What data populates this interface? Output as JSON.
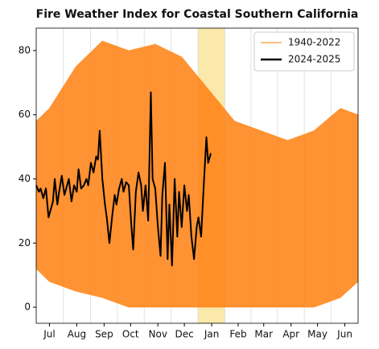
{
  "chart_data": {
    "type": "line",
    "title": "Fire Weather Index for Coastal Southern California",
    "xlim": [
      0,
      365
    ],
    "ylim": [
      -5,
      87
    ],
    "yticks": [
      0,
      20,
      40,
      60,
      80
    ],
    "xticks": [
      {
        "value": 15,
        "label": "Jul"
      },
      {
        "value": 46,
        "label": "Aug"
      },
      {
        "value": 77,
        "label": "Sep"
      },
      {
        "value": 107,
        "label": "Oct"
      },
      {
        "value": 138,
        "label": "Nov"
      },
      {
        "value": 168,
        "label": "Dec"
      },
      {
        "value": 199,
        "label": "Jan"
      },
      {
        "value": 229,
        "label": "Feb"
      },
      {
        "value": 258,
        "label": "Mar"
      },
      {
        "value": 289,
        "label": "Apr"
      },
      {
        "value": 319,
        "label": "May"
      },
      {
        "value": 350,
        "label": "Jun"
      }
    ],
    "grid": true,
    "highlight": [
      183,
      214
    ],
    "highlight_color": "#fbe6a2",
    "legend": "upper right",
    "series": [
      {
        "name": "1940-2022",
        "color": "#ff7f0e",
        "x": [
          0,
          15,
          45,
          75,
          105,
          135,
          165,
          195,
          225,
          255,
          285,
          315,
          345,
          365
        ],
        "values": [
          58,
          62,
          75,
          83,
          80,
          82,
          78,
          68,
          58,
          55,
          52,
          55,
          62,
          60
        ],
        "lower": [
          12,
          8,
          5,
          3,
          0,
          0,
          0,
          0,
          0,
          0,
          0,
          0,
          3,
          8
        ]
      },
      {
        "name": "2024-2025",
        "color": "#000000",
        "x": [
          0,
          3,
          5,
          8,
          11,
          14,
          16,
          19,
          21,
          24,
          26,
          29,
          32,
          35,
          37,
          40,
          43,
          46,
          48,
          51,
          54,
          57,
          59,
          62,
          65,
          68,
          70,
          72,
          75,
          78,
          80,
          83,
          86,
          89,
          91,
          94,
          97,
          99,
          102,
          105,
          108,
          110,
          113,
          116,
          119,
          121,
          124,
          127,
          130,
          132,
          135,
          138,
          141,
          143,
          146,
          149,
          151,
          154,
          157,
          160,
          162,
          165,
          168,
          171,
          173,
          176,
          179,
          182,
          184,
          187,
          190,
          193,
          195,
          198
        ],
        "values": [
          38,
          36,
          37,
          34,
          37,
          28,
          30,
          33,
          40,
          32,
          36,
          41,
          35,
          38,
          40,
          33,
          38,
          36,
          43,
          37,
          38,
          40,
          38,
          45,
          42,
          47,
          46,
          55,
          40,
          32,
          28,
          20,
          28,
          35,
          32,
          37,
          40,
          36,
          39,
          38,
          25,
          18,
          36,
          42,
          38,
          30,
          38,
          27,
          67,
          40,
          37,
          25,
          16,
          35,
          45,
          15,
          32,
          13,
          40,
          22,
          36,
          25,
          38,
          30,
          35,
          22,
          15,
          25,
          28,
          22,
          38,
          53,
          45,
          48
        ]
      }
    ]
  }
}
